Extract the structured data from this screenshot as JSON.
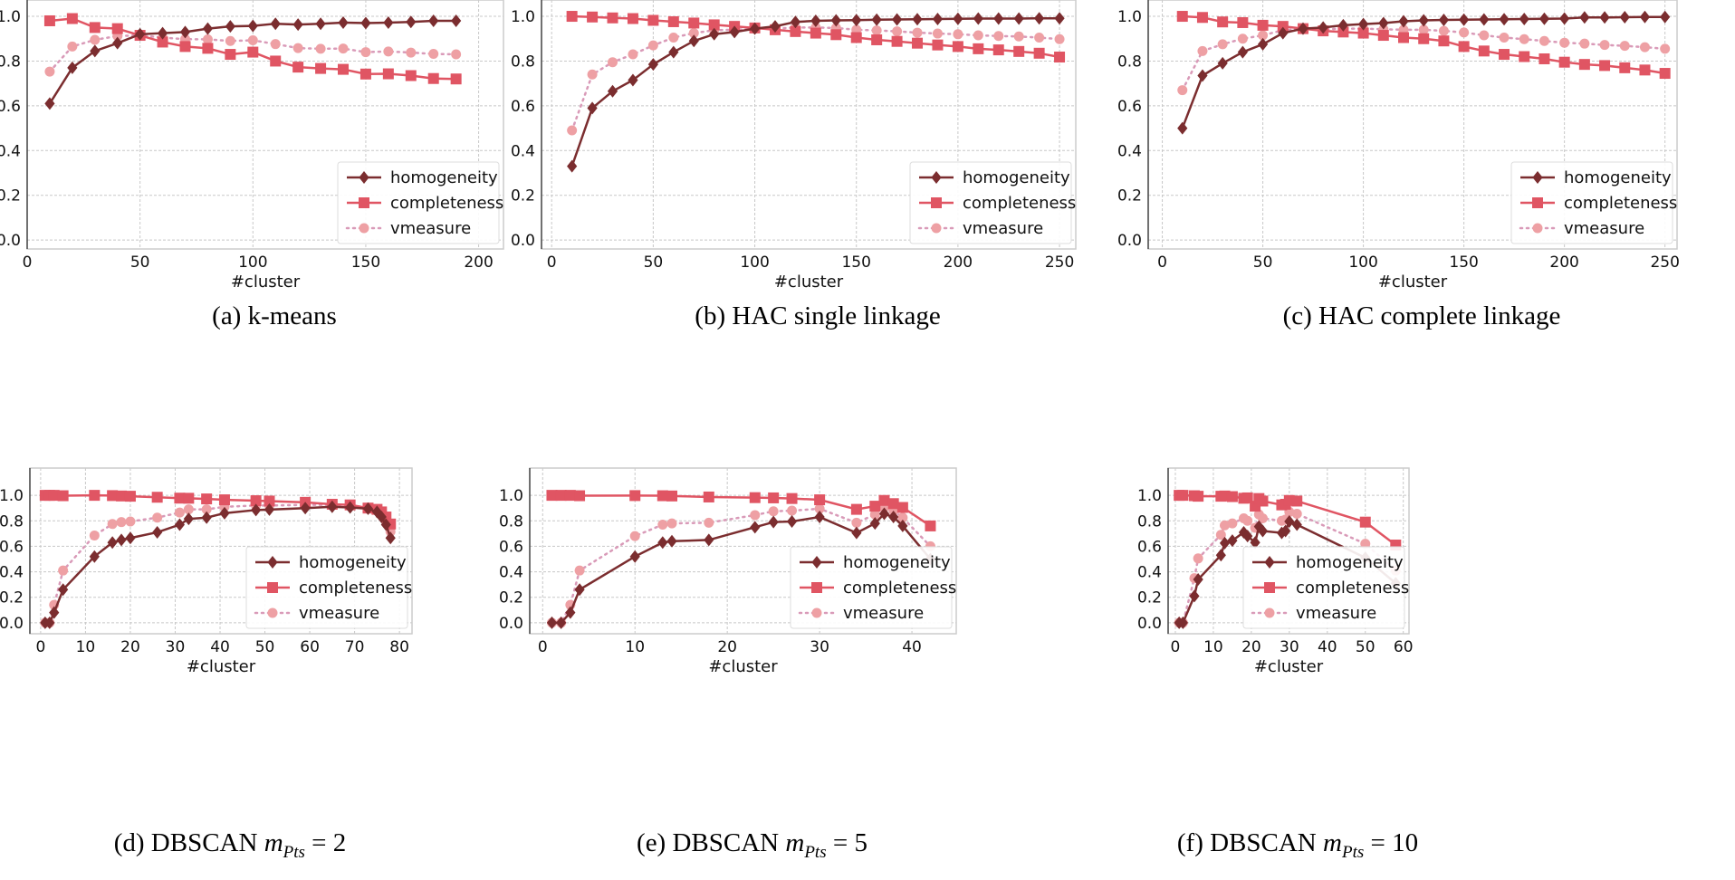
{
  "colors": {
    "homogeneity": "#7b2d2f",
    "completeness": "#e05563",
    "vmeasure": "#eea0a4",
    "vmeasure_line": "#d99ab8",
    "grid": "#c8c8c8"
  },
  "legend_labels": [
    "homogeneity",
    "completeness",
    "vmeasure"
  ],
  "chart_data": [
    {
      "type": "line",
      "caption": {
        "prefix": "(a) k-means",
        "var": "",
        "sub": "",
        "suffix": ""
      },
      "xlabel": "#cluster",
      "ylabel": "",
      "xlim": [
        0,
        211
      ],
      "ylim": [
        -0.04,
        1.073
      ],
      "xticks": [
        0,
        50,
        100,
        150,
        200
      ],
      "yticks": [
        0.0,
        0.2,
        0.4,
        0.6,
        0.8,
        1.0
      ],
      "grid": true,
      "legend": "lower-right",
      "x": [
        10,
        20,
        30,
        40,
        50,
        60,
        70,
        80,
        90,
        100,
        110,
        120,
        130,
        140,
        150,
        160,
        170,
        180,
        190
      ],
      "series": [
        {
          "name": "homogeneity",
          "values": [
            0.61,
            0.77,
            0.845,
            0.88,
            0.92,
            0.925,
            0.93,
            0.945,
            0.955,
            0.957,
            0.967,
            0.963,
            0.967,
            0.972,
            0.97,
            0.972,
            0.975,
            0.98,
            0.98
          ]
        },
        {
          "name": "completeness",
          "values": [
            0.98,
            0.99,
            0.95,
            0.945,
            0.915,
            0.885,
            0.865,
            0.857,
            0.83,
            0.84,
            0.8,
            0.773,
            0.767,
            0.763,
            0.742,
            0.743,
            0.735,
            0.722,
            0.72
          ]
        },
        {
          "name": "vmeasure",
          "values": [
            0.753,
            0.865,
            0.895,
            0.912,
            0.915,
            0.905,
            0.898,
            0.897,
            0.89,
            0.893,
            0.876,
            0.858,
            0.855,
            0.856,
            0.84,
            0.843,
            0.838,
            0.832,
            0.83
          ]
        }
      ]
    },
    {
      "type": "line",
      "caption": {
        "prefix": "(b) HAC single linkage",
        "var": "",
        "sub": "",
        "suffix": ""
      },
      "xlabel": "#cluster",
      "ylabel": "",
      "xlim": [
        -5,
        258
      ],
      "ylim": [
        -0.04,
        1.073
      ],
      "xticks": [
        0,
        50,
        100,
        150,
        200,
        250
      ],
      "yticks": [
        0.0,
        0.2,
        0.4,
        0.6,
        0.8,
        1.0
      ],
      "grid": true,
      "legend": "lower-right",
      "x": [
        10,
        20,
        30,
        40,
        50,
        60,
        70,
        80,
        90,
        100,
        110,
        120,
        130,
        140,
        150,
        160,
        170,
        180,
        190,
        200,
        210,
        220,
        230,
        240,
        250
      ],
      "series": [
        {
          "name": "homogeneity",
          "values": [
            0.33,
            0.59,
            0.665,
            0.715,
            0.785,
            0.84,
            0.89,
            0.92,
            0.93,
            0.945,
            0.955,
            0.975,
            0.98,
            0.982,
            0.983,
            0.985,
            0.986,
            0.987,
            0.988,
            0.989,
            0.99,
            0.99,
            0.99,
            0.991,
            0.991
          ]
        },
        {
          "name": "completeness",
          "values": [
            1.0,
            0.997,
            0.993,
            0.99,
            0.982,
            0.976,
            0.97,
            0.962,
            0.955,
            0.948,
            0.94,
            0.932,
            0.925,
            0.918,
            0.905,
            0.895,
            0.888,
            0.88,
            0.872,
            0.865,
            0.855,
            0.85,
            0.843,
            0.835,
            0.818
          ]
        },
        {
          "name": "vmeasure",
          "values": [
            0.49,
            0.74,
            0.795,
            0.83,
            0.87,
            0.905,
            0.925,
            0.938,
            0.94,
            0.945,
            0.945,
            0.95,
            0.95,
            0.948,
            0.94,
            0.937,
            0.933,
            0.927,
            0.923,
            0.92,
            0.915,
            0.912,
            0.91,
            0.905,
            0.898
          ]
        }
      ]
    },
    {
      "type": "line",
      "caption": {
        "prefix": "(c) HAC complete linkage",
        "var": "",
        "sub": "",
        "suffix": ""
      },
      "xlabel": "#cluster",
      "ylabel": "",
      "xlim": [
        -7,
        256
      ],
      "ylim": [
        -0.04,
        1.073
      ],
      "xticks": [
        0,
        50,
        100,
        150,
        200,
        250
      ],
      "yticks": [
        0.0,
        0.2,
        0.4,
        0.6,
        0.8,
        1.0
      ],
      "grid": true,
      "legend": "lower-right",
      "x": [
        10,
        20,
        30,
        40,
        50,
        60,
        70,
        80,
        90,
        100,
        110,
        120,
        130,
        140,
        150,
        160,
        170,
        180,
        190,
        200,
        210,
        220,
        230,
        240,
        250
      ],
      "series": [
        {
          "name": "homogeneity",
          "values": [
            0.5,
            0.735,
            0.79,
            0.84,
            0.875,
            0.925,
            0.945,
            0.95,
            0.96,
            0.965,
            0.97,
            0.978,
            0.982,
            0.984,
            0.985,
            0.986,
            0.987,
            0.988,
            0.989,
            0.99,
            0.995,
            0.995,
            0.996,
            0.997,
            0.997
          ]
        },
        {
          "name": "completeness",
          "values": [
            1.0,
            0.995,
            0.975,
            0.972,
            0.96,
            0.955,
            0.945,
            0.935,
            0.93,
            0.925,
            0.915,
            0.905,
            0.9,
            0.89,
            0.865,
            0.845,
            0.83,
            0.82,
            0.81,
            0.795,
            0.785,
            0.78,
            0.77,
            0.76,
            0.745
          ]
        },
        {
          "name": "vmeasure",
          "values": [
            0.67,
            0.845,
            0.875,
            0.9,
            0.915,
            0.938,
            0.945,
            0.942,
            0.945,
            0.945,
            0.942,
            0.94,
            0.94,
            0.935,
            0.928,
            0.915,
            0.905,
            0.898,
            0.89,
            0.882,
            0.878,
            0.872,
            0.868,
            0.862,
            0.855
          ]
        }
      ]
    },
    {
      "type": "line",
      "caption": {
        "prefix": "(d) DBSCAN ",
        "var": "m",
        "sub": "Pts",
        "suffix": " = 2"
      },
      "xlabel": "#cluster",
      "ylabel": "",
      "xlim": [
        -2.4,
        82.8
      ],
      "ylim": [
        -0.086,
        1.214
      ],
      "xticks": [
        0,
        10,
        20,
        30,
        40,
        50,
        60,
        70,
        80
      ],
      "yticks": [
        0.0,
        0.2,
        0.4,
        0.6,
        0.8,
        1.0
      ],
      "grid": true,
      "legend": "lower-right",
      "x": [
        1,
        2,
        3,
        5,
        12,
        16,
        18,
        20,
        26,
        31,
        33,
        37,
        41,
        48,
        51,
        59,
        65,
        69,
        73,
        75,
        76,
        77,
        78
      ],
      "series": [
        {
          "name": "homogeneity",
          "values": [
            0,
            0,
            0.08,
            0.26,
            0.52,
            0.63,
            0.65,
            0.665,
            0.71,
            0.77,
            0.815,
            0.825,
            0.86,
            0.885,
            0.888,
            0.9,
            0.91,
            0.905,
            0.895,
            0.87,
            0.83,
            0.77,
            0.665
          ]
        },
        {
          "name": "completeness",
          "values": [
            1,
            1,
            1,
            0.997,
            1,
            0.998,
            0.995,
            0.993,
            0.985,
            0.978,
            0.977,
            0.972,
            0.965,
            0.958,
            0.955,
            0.945,
            0.93,
            0.925,
            0.9,
            0.89,
            0.87,
            0.83,
            0.775
          ]
        },
        {
          "name": "vmeasure",
          "values": [
            0,
            0,
            0.14,
            0.41,
            0.685,
            0.775,
            0.79,
            0.795,
            0.825,
            0.865,
            0.89,
            0.89,
            0.91,
            0.92,
            0.92,
            0.925,
            0.925,
            0.92,
            0.905,
            0.88,
            0.85,
            0.8,
            0.715
          ]
        }
      ]
    },
    {
      "type": "line",
      "caption": {
        "prefix": "(e) DBSCAN ",
        "var": "m",
        "sub": "Pts",
        "suffix": " = 5"
      },
      "xlabel": "#cluster",
      "ylabel": "",
      "xlim": [
        -1.4,
        44.8
      ],
      "ylim": [
        -0.086,
        1.214
      ],
      "xticks": [
        0,
        10,
        20,
        30,
        40
      ],
      "yticks": [
        0.0,
        0.2,
        0.4,
        0.6,
        0.8,
        1.0
      ],
      "grid": true,
      "legend": "lower-right",
      "x": [
        1,
        2,
        3,
        4,
        10,
        13,
        14,
        18,
        23,
        25,
        27,
        30,
        34,
        36,
        37,
        38,
        39,
        42
      ],
      "series": [
        {
          "name": "homogeneity",
          "values": [
            0,
            0,
            0.08,
            0.26,
            0.52,
            0.63,
            0.64,
            0.65,
            0.75,
            0.79,
            0.795,
            0.83,
            0.705,
            0.78,
            0.855,
            0.83,
            0.76,
            0.5
          ]
        },
        {
          "name": "completeness",
          "values": [
            1,
            1,
            1,
            0.997,
            0.998,
            0.997,
            0.995,
            0.987,
            0.982,
            0.98,
            0.975,
            0.965,
            0.89,
            0.915,
            0.96,
            0.935,
            0.905,
            0.76
          ]
        },
        {
          "name": "vmeasure",
          "values": [
            0,
            0,
            0.14,
            0.41,
            0.68,
            0.77,
            0.78,
            0.785,
            0.845,
            0.875,
            0.88,
            0.895,
            0.785,
            0.85,
            0.905,
            0.88,
            0.825,
            0.6
          ]
        }
      ]
    },
    {
      "type": "line",
      "caption": {
        "prefix": "(f) DBSCAN ",
        "var": "m",
        "sub": "Pts",
        "suffix": " = 10"
      },
      "xlabel": "#cluster",
      "ylabel": "",
      "xlim": [
        -1.9,
        61.5
      ],
      "ylim": [
        -0.086,
        1.214
      ],
      "xticks": [
        0,
        10,
        20,
        30,
        40,
        50,
        60
      ],
      "yticks": [
        0.0,
        0.2,
        0.4,
        0.6,
        0.8,
        1.0
      ],
      "grid": true,
      "legend": "lower-right",
      "x": [
        1,
        2,
        5,
        6,
        12,
        13,
        15,
        18,
        19,
        21,
        22,
        23,
        28,
        29,
        30,
        32,
        50,
        58
      ],
      "series": [
        {
          "name": "homogeneity",
          "values": [
            0,
            0,
            0.21,
            0.34,
            0.53,
            0.625,
            0.645,
            0.71,
            0.68,
            0.63,
            0.755,
            0.72,
            0.705,
            0.72,
            0.795,
            0.77,
            0.51,
            0.31
          ]
        },
        {
          "name": "completeness",
          "values": [
            1,
            1,
            0.997,
            0.993,
            0.993,
            0.995,
            0.99,
            0.977,
            0.98,
            0.915,
            0.975,
            0.955,
            0.925,
            0.93,
            0.96,
            0.955,
            0.79,
            0.61
          ]
        },
        {
          "name": "vmeasure",
          "values": [
            0,
            0,
            0.35,
            0.505,
            0.69,
            0.765,
            0.78,
            0.82,
            0.8,
            0.745,
            0.85,
            0.82,
            0.8,
            0.81,
            0.87,
            0.855,
            0.62,
            0.41
          ]
        }
      ]
    }
  ]
}
